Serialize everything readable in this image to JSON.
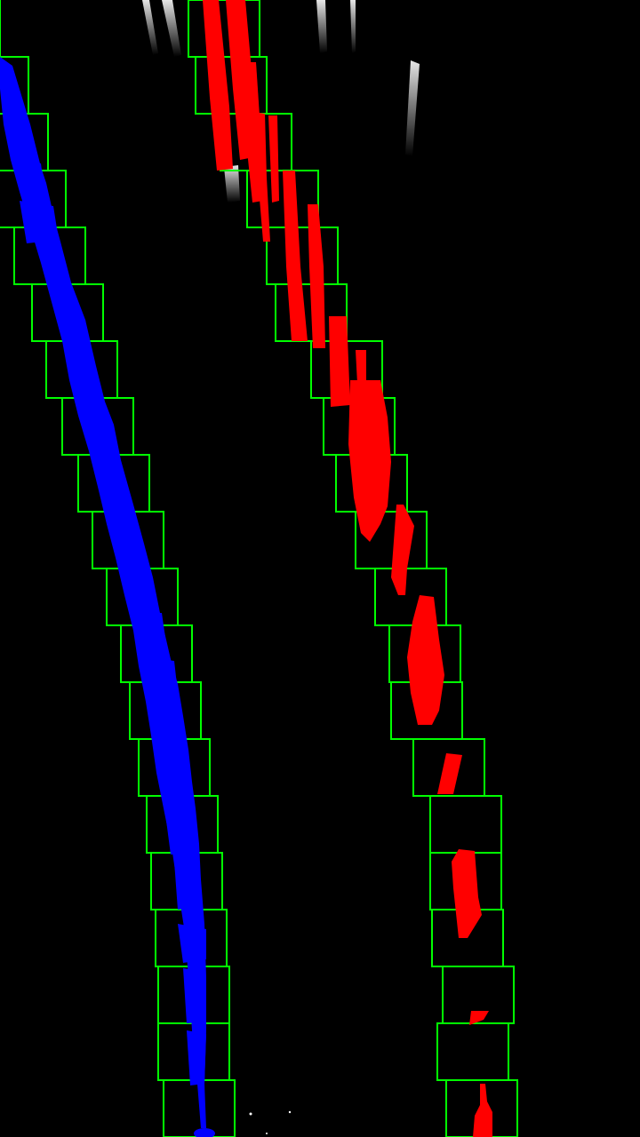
{
  "image": {
    "description_visible_text": "",
    "background_color": "#000000"
  },
  "colors": {
    "left_lane": "#0000FF",
    "right_lane": "#FF0000",
    "search_window": "#00FF00",
    "residual_pixels": "#FFFFFF"
  },
  "lanes": {
    "left": {
      "name": "left-lane-pixels",
      "window_count": 20
    },
    "right": {
      "name": "right-lane-pixels",
      "window_count": 20
    }
  }
}
